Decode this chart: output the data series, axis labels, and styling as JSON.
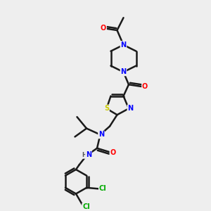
{
  "bg_color": "#eeeeee",
  "bond_color": "#1a1a1a",
  "bond_width": 1.8,
  "atom_colors": {
    "N": "#0000ff",
    "O": "#ff0000",
    "S": "#cccc00",
    "Cl": "#00aa00",
    "C": "#1a1a1a",
    "H": "#555555"
  },
  "figsize": [
    3.0,
    3.0
  ],
  "dpi": 100
}
